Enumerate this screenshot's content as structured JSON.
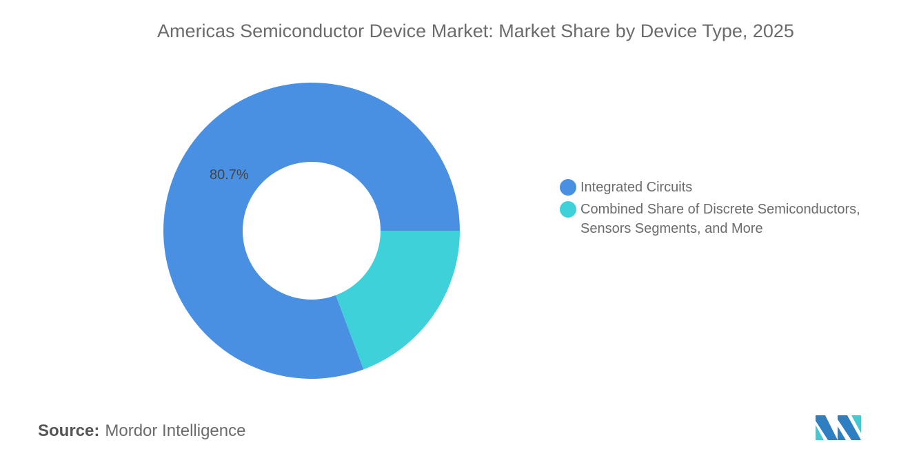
{
  "chart_data": {
    "type": "pie",
    "donut": true,
    "title": "Americas Semiconductor Device Market: Market Share by Device Type, 2025",
    "categories": [
      "Integrated Circuits",
      "Combined Share of Discrete Semiconductors, Sensors Segments, and More"
    ],
    "values": [
      80.7,
      19.3
    ],
    "colors": [
      "#4a90e2",
      "#3fd1da"
    ],
    "data_labels": [
      "80.7%",
      ""
    ],
    "legend_position": "right"
  },
  "source": {
    "label": "Source:",
    "value": "Mordor Intelligence"
  },
  "logo": {
    "colors": [
      "#2d7fc1",
      "#45c8d0"
    ]
  }
}
